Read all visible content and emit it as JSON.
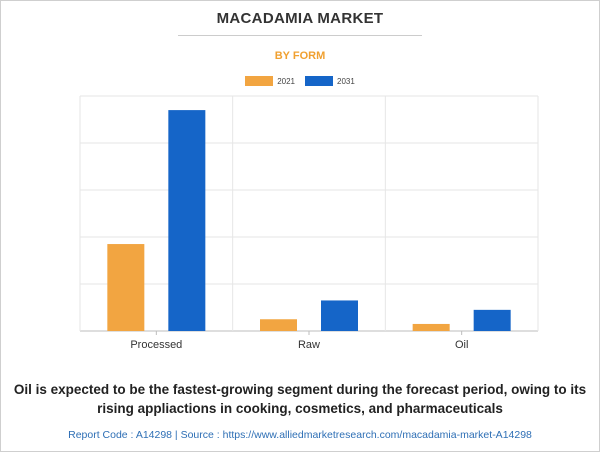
{
  "header": {
    "title": "MACADAMIA MARKET",
    "subtitle": "BY FORM"
  },
  "colors": {
    "series_2021": "#f2a541",
    "series_2031": "#1565c8",
    "subtitle": "#f0a030",
    "footer_link": "#2e6fb5"
  },
  "chart_data": {
    "type": "bar",
    "title": "MACADAMIA MARKET",
    "subtitle": "BY FORM",
    "categories": [
      "Processed",
      "Raw",
      "Oil"
    ],
    "series": [
      {
        "name": "2021",
        "values": [
          37,
          5,
          3
        ]
      },
      {
        "name": "2031",
        "values": [
          94,
          13,
          9
        ]
      }
    ],
    "ylim": [
      0,
      100
    ],
    "y_ticks_labeled": false,
    "grid": true,
    "legend_placement": "top-center"
  },
  "caption": "Oil is expected to be the fastest-growing segment during the forecast period, owing to its rising appliactions in cooking, cosmetics, and pharmaceuticals",
  "footer": "Report Code : A14298  |  Source : https://www.alliedmarketresearch.com/macadamia-market-A14298"
}
